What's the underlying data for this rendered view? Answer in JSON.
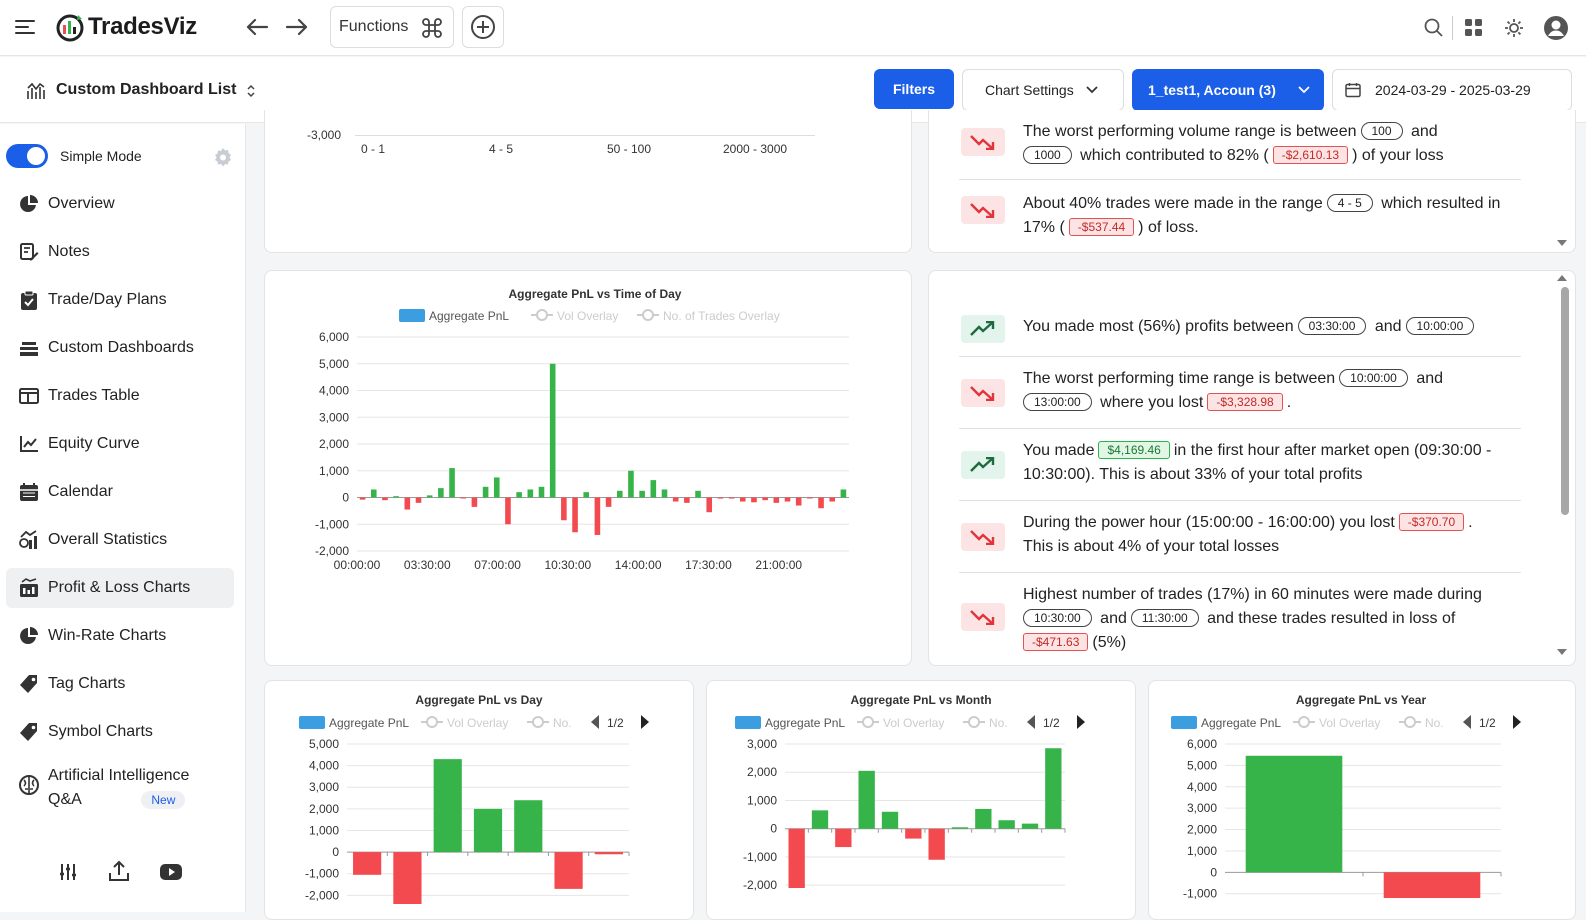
{
  "app": {
    "brand": "TradesViz"
  },
  "topbar": {
    "functions_label": "Functions"
  },
  "subbar": {
    "dashboard_title": "Custom Dashboard List",
    "filters_label": "Filters",
    "chart_settings_label": "Chart Settings",
    "account_label": "1_test1, Accoun (3)",
    "date_range": "2024-03-29 - 2025-03-29"
  },
  "sidebar": {
    "simple_mode_label": "Simple Mode",
    "items": [
      {
        "label": "Overview",
        "icon": "pie-icon"
      },
      {
        "label": "Notes",
        "icon": "notes-icon"
      },
      {
        "label": "Trade/Day Plans",
        "icon": "clipboard-icon"
      },
      {
        "label": "Custom Dashboards",
        "icon": "layers-icon"
      },
      {
        "label": "Trades Table",
        "icon": "table-icon"
      },
      {
        "label": "Equity Curve",
        "icon": "line-chart-icon"
      },
      {
        "label": "Calendar",
        "icon": "calendar-icon"
      },
      {
        "label": "Overall Statistics",
        "icon": "stats-icon"
      },
      {
        "label": "Profit & Loss Charts",
        "icon": "bar-chart-icon",
        "active": true
      },
      {
        "label": "Win-Rate Charts",
        "icon": "pie-icon"
      },
      {
        "label": "Tag Charts",
        "icon": "tag-icon"
      },
      {
        "label": "Symbol Charts",
        "icon": "tag-icon"
      },
      {
        "label": "Artificial Intelligence",
        "label2": "Q&A",
        "badge": "New",
        "icon": "brain-icon"
      }
    ]
  },
  "top_chart_stub": {
    "y_tick": "-3,000",
    "x_ticks": [
      "0 - 1",
      "4 - 5",
      "50 - 100",
      "2000 - 3000"
    ]
  },
  "volume_insights": {
    "row1": {
      "t1": "The worst performing volume range is between",
      "p1": "100",
      "t2": "and",
      "p2": "1000",
      "t3": "which contributed to 82% (",
      "p3": "-$2,610.13",
      "t4": ") of your loss"
    },
    "row2": {
      "t1": "About 40% trades were made in the range",
      "p1": "4 - 5",
      "t2": "which resulted in 17% (",
      "p2": "-$537.44",
      "t3": ") of loss."
    }
  },
  "time_insights": {
    "row1": {
      "t1": "You made most (56%) profits between",
      "p1": "03:30:00",
      "t2": "and",
      "p2": "10:00:00"
    },
    "row2": {
      "t1": "The worst performing time range is between",
      "p1": "10:00:00",
      "t2": "and",
      "p2": "13:00:00",
      "t3": "where you lost",
      "p3": "-$3,328.98",
      "t4": "."
    },
    "row3": {
      "t1": "You made",
      "p1": "$4,169.46",
      "t2": "in the first hour after market open (09:30:00 - 10:30:00). This is about 33% of your total profits"
    },
    "row4": {
      "t1": "During the power hour (15:00:00 - 16:00:00) you lost",
      "p1": "-$370.70",
      "t2": ".",
      "t3": "This is about 4% of your total losses"
    },
    "row5": {
      "t1": "Highest number of trades (17%) in 60 minutes were made during",
      "p1": "10:30:00",
      "t2": "and",
      "p2": "11:30:00",
      "t3": "and these trades resulted in loss of",
      "p3": "-$471.63",
      "t4": "(5%)"
    }
  },
  "chart_data": [
    {
      "type": "bar",
      "title": "Aggregate PnL vs Time of Day",
      "legend": [
        "Aggregate PnL",
        "Vol Overlay",
        "No. of Trades Overlay"
      ],
      "x_tick_labels": [
        "00:00:00",
        "03:30:00",
        "07:00:00",
        "10:30:00",
        "14:00:00",
        "17:30:00",
        "21:00:00"
      ],
      "y_ticks": [
        "6,000",
        "5,000",
        "4,000",
        "3,000",
        "2,000",
        "1,000",
        "0",
        "-1,000",
        "-2,000"
      ],
      "ylim": [
        -2000,
        6000
      ],
      "series": [
        {
          "values": [
            -80,
            300,
            -100,
            50,
            -450,
            -200,
            80,
            350,
            1100,
            -20,
            -350,
            400,
            750,
            -1000,
            200,
            300,
            400,
            5000,
            -850,
            -1300,
            200,
            -1400,
            -350,
            250,
            1000,
            250,
            650,
            300,
            -150,
            -200,
            250,
            -550,
            -40,
            -40,
            -150,
            -180,
            -100,
            -200,
            -150,
            -300,
            -30,
            -400,
            -150,
            300
          ]
        }
      ]
    },
    {
      "type": "bar",
      "title": "Aggregate PnL vs Day",
      "legend": [
        "Aggregate PnL",
        "Vol Overlay",
        "No."
      ],
      "pager": "1/2",
      "y_ticks": [
        "5,000",
        "4,000",
        "3,000",
        "2,000",
        "1,000",
        "0",
        "-1,000",
        "-2,000"
      ],
      "ylim": [
        -2400,
        5000
      ],
      "series": [
        {
          "values": [
            -1050,
            -2400,
            4300,
            2000,
            2400,
            -1700,
            -100
          ]
        }
      ]
    },
    {
      "type": "bar",
      "title": "Aggregate PnL vs Month",
      "legend": [
        "Aggregate PnL",
        "Vol Overlay",
        "No."
      ],
      "pager": "1/2",
      "y_ticks": [
        "3,000",
        "2,000",
        "1,000",
        "0",
        "-1,000",
        "-2,000"
      ],
      "ylim": [
        -2100,
        3000
      ],
      "series": [
        {
          "values": [
            -2100,
            650,
            -650,
            2050,
            600,
            -350,
            -1100,
            50,
            700,
            300,
            180,
            2850
          ]
        }
      ]
    },
    {
      "type": "bar",
      "title": "Aggregate PnL vs Year",
      "legend": [
        "Aggregate PnL",
        "Vol Overlay",
        "No."
      ],
      "pager": "1/2",
      "y_ticks": [
        "6,000",
        "5,000",
        "4,000",
        "3,000",
        "2,000",
        "1,000",
        "0",
        "-1,000"
      ],
      "ylim": [
        -1200,
        6000
      ],
      "series": [
        {
          "values": [
            5450,
            -1200
          ]
        }
      ]
    }
  ],
  "colors": {
    "positive": "#36b44a",
    "negative": "#f34a4f",
    "primary": "#1b5ee8",
    "legend": "#3a9ee0"
  }
}
